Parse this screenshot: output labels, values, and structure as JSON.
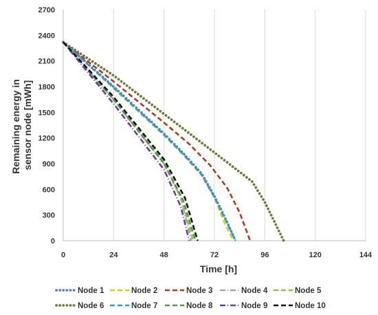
{
  "chart_data": {
    "type": "line",
    "xlabel": "Time [h]",
    "ylabel_lines": [
      "Remaining energy in",
      "sensor node [mWh]"
    ],
    "xlim": [
      0,
      144
    ],
    "ylim": [
      0,
      2700
    ],
    "xticks": [
      "0",
      "24",
      "48",
      "72",
      "96",
      "120",
      "144"
    ],
    "yticks": [
      "0",
      "300",
      "600",
      "900",
      "1200",
      "1500",
      "1800",
      "2100",
      "2400",
      "2700"
    ],
    "grid": "vertical",
    "legend_position": "bottom",
    "series": [
      {
        "name": "Node 1",
        "color": "#5b7fc4",
        "style": "dot",
        "x": [
          0,
          24,
          48,
          58,
          66,
          72,
          78,
          82
        ],
        "y": [
          2320,
          1800,
          1250,
          1000,
          780,
          520,
          220,
          0
        ]
      },
      {
        "name": "Node 2",
        "color": "#d7d000",
        "style": "dash",
        "x": [
          0,
          24,
          48,
          58,
          66,
          72,
          77,
          81
        ],
        "y": [
          2320,
          1780,
          1230,
          980,
          760,
          500,
          200,
          0
        ]
      },
      {
        "name": "Node 3",
        "color": "#b23a1a",
        "style": "dash",
        "x": [
          0,
          24,
          48,
          60,
          70,
          78,
          84,
          89
        ],
        "y": [
          2320,
          1860,
          1380,
          1130,
          880,
          620,
          330,
          0
        ]
      },
      {
        "name": "Node 4",
        "color": "#a6a6a6",
        "style": "dashdot",
        "x": [
          0,
          24,
          48,
          56,
          61
        ],
        "y": [
          2320,
          1650,
          900,
          500,
          0
        ]
      },
      {
        "name": "Node 5",
        "color": "#8cc63f",
        "style": "dash",
        "x": [
          0,
          24,
          48,
          56,
          62
        ],
        "y": [
          2320,
          1660,
          920,
          500,
          0
        ]
      },
      {
        "name": "Node 6",
        "color": "#6f7c3e",
        "style": "dot",
        "x": [
          0,
          24,
          48,
          72,
          90,
          96,
          101,
          105
        ],
        "y": [
          2320,
          1930,
          1480,
          1030,
          690,
          450,
          200,
          0
        ]
      },
      {
        "name": "Node 7",
        "color": "#2b9ad8",
        "style": "dash",
        "x": [
          0,
          24,
          48,
          58,
          66,
          72,
          78,
          82
        ],
        "y": [
          2320,
          1790,
          1240,
          990,
          770,
          510,
          210,
          0
        ]
      },
      {
        "name": "Node 8",
        "color": "#4f9a4a",
        "style": "dash",
        "x": [
          0,
          24,
          48,
          57,
          63
        ],
        "y": [
          2320,
          1650,
          900,
          480,
          0
        ]
      },
      {
        "name": "Node 9",
        "color": "#6b3fa0",
        "style": "dashdot",
        "x": [
          0,
          24,
          48,
          56,
          60
        ],
        "y": [
          2320,
          1600,
          830,
          400,
          0
        ]
      },
      {
        "name": "Node 10",
        "color": "#111111",
        "style": "dash",
        "x": [
          0,
          24,
          48,
          58,
          64
        ],
        "y": [
          2320,
          1680,
          950,
          500,
          0
        ]
      }
    ]
  }
}
